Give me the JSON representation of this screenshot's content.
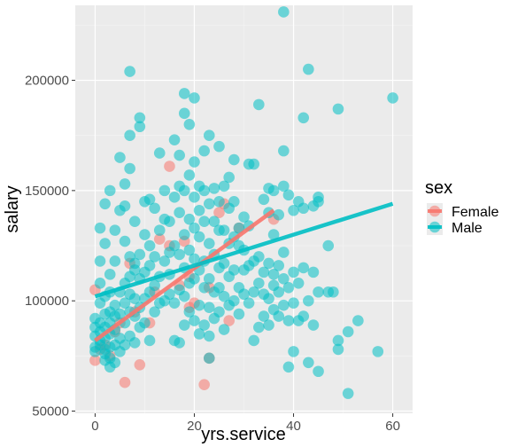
{
  "chart_data": {
    "type": "scatter",
    "title": "",
    "xlabel": "yrs.service",
    "ylabel": "salary",
    "xlim": [
      -4,
      64
    ],
    "ylim": [
      49000,
      234000
    ],
    "x_ticks": [
      0,
      20,
      40,
      60
    ],
    "x_tick_labels": [
      "0",
      "20",
      "40",
      "60"
    ],
    "y_ticks": [
      50000,
      100000,
      150000,
      200000
    ],
    "y_tick_labels": [
      "50000",
      "100000",
      "150000",
      "200000"
    ],
    "grid": true,
    "legend": {
      "title": "sex",
      "position": "right"
    },
    "series": [
      {
        "name": "Female",
        "color": "#F8766D",
        "trend": {
          "x": [
            0,
            36
          ],
          "y": [
            82000,
            141000
          ]
        },
        "points": [
          [
            0,
            105000
          ],
          [
            0,
            73000
          ],
          [
            1,
            78000
          ],
          [
            2,
            80000
          ],
          [
            3,
            75000
          ],
          [
            4,
            86000
          ],
          [
            5,
            90000
          ],
          [
            6,
            63000
          ],
          [
            7,
            117000
          ],
          [
            8,
            95000
          ],
          [
            9,
            71000
          ],
          [
            11,
            90000
          ],
          [
            12,
            104000
          ],
          [
            13,
            128000
          ],
          [
            15,
            161000
          ],
          [
            15,
            125000
          ],
          [
            17,
            107000
          ],
          [
            18,
            127000
          ],
          [
            19,
            97000
          ],
          [
            19,
            111000
          ],
          [
            20,
            99000
          ],
          [
            22,
            62000
          ],
          [
            23,
            74000
          ],
          [
            23,
            106000
          ],
          [
            25,
            140000
          ],
          [
            26,
            144000
          ],
          [
            27,
            91000
          ],
          [
            29,
            133000
          ],
          [
            36,
            137000
          ]
        ]
      },
      {
        "name": "Male",
        "color": "#00BFC4",
        "trend": {
          "x": [
            0,
            60
          ],
          "y": [
            102000,
            144000
          ]
        },
        "points": [
          [
            0,
            79000
          ],
          [
            0,
            84000
          ],
          [
            0,
            88000
          ],
          [
            0,
            92000
          ],
          [
            0,
            77000
          ],
          [
            1,
            80000
          ],
          [
            1,
            82000
          ],
          [
            1,
            86000
          ],
          [
            1,
            90000
          ],
          [
            1,
            99000
          ],
          [
            1,
            108000
          ],
          [
            1,
            118000
          ],
          [
            1,
            133000
          ],
          [
            2,
            76000
          ],
          [
            2,
            73000
          ],
          [
            2,
            78000
          ],
          [
            2,
            83000
          ],
          [
            2,
            88000
          ],
          [
            2,
            94000
          ],
          [
            2,
            102000
          ],
          [
            2,
            126000
          ],
          [
            2,
            144000
          ],
          [
            3,
            70000
          ],
          [
            3,
            74000
          ],
          [
            3,
            79000
          ],
          [
            3,
            85000
          ],
          [
            3,
            90000
          ],
          [
            3,
            95000
          ],
          [
            3,
            104000
          ],
          [
            3,
            112000
          ],
          [
            3,
            150000
          ],
          [
            4,
            72000
          ],
          [
            4,
            80000
          ],
          [
            4,
            87000
          ],
          [
            4,
            93000
          ],
          [
            4,
            98000
          ],
          [
            4,
            118000
          ],
          [
            4,
            132000
          ],
          [
            5,
            77000
          ],
          [
            5,
            83000
          ],
          [
            5,
            94000
          ],
          [
            5,
            104000
          ],
          [
            5,
            141000
          ],
          [
            5,
            165000
          ],
          [
            6,
            80000
          ],
          [
            6,
            90000
          ],
          [
            6,
            99000
          ],
          [
            6,
            108000
          ],
          [
            6,
            127000
          ],
          [
            6,
            143000
          ],
          [
            6,
            153000
          ],
          [
            7,
            84000
          ],
          [
            7,
            95000
          ],
          [
            7,
            103000
          ],
          [
            7,
            111000
          ],
          [
            7,
            120000
          ],
          [
            7,
            160000
          ],
          [
            7,
            175000
          ],
          [
            7,
            204000
          ],
          [
            8,
            81000
          ],
          [
            8,
            93000
          ],
          [
            8,
            101000
          ],
          [
            8,
            117000
          ],
          [
            8,
            136000
          ],
          [
            8,
            114000
          ],
          [
            9,
            88000
          ],
          [
            9,
            97000
          ],
          [
            9,
            110000
          ],
          [
            9,
            121000
          ],
          [
            9,
            179000
          ],
          [
            9,
            183000
          ],
          [
            10,
            90000
          ],
          [
            10,
            101000
          ],
          [
            10,
            113000
          ],
          [
            10,
            145000
          ],
          [
            10,
            130000
          ],
          [
            11,
            82000
          ],
          [
            11,
            104000
          ],
          [
            11,
            116000
          ],
          [
            11,
            125000
          ],
          [
            11,
            146000
          ],
          [
            12,
            95000
          ],
          [
            12,
            107000
          ],
          [
            12,
            120000
          ],
          [
            12,
            142000
          ],
          [
            13,
            99000
          ],
          [
            13,
            111000
          ],
          [
            13,
            132000
          ],
          [
            13,
            167000
          ],
          [
            14,
            100000
          ],
          [
            14,
            118000
          ],
          [
            14,
            137000
          ],
          [
            14,
            150000
          ],
          [
            15,
            103000
          ],
          [
            15,
            112000
          ],
          [
            15,
            122000
          ],
          [
            15,
            136000
          ],
          [
            16,
            82000
          ],
          [
            16,
            99000
          ],
          [
            16,
            125000
          ],
          [
            16,
            147000
          ],
          [
            16,
            173000
          ],
          [
            17,
            81000
          ],
          [
            17,
            105000
          ],
          [
            17,
            121000
          ],
          [
            17,
            140000
          ],
          [
            17,
            152000
          ],
          [
            17,
            166000
          ],
          [
            18,
            89000
          ],
          [
            18,
            102000
          ],
          [
            18,
            115000
          ],
          [
            18,
            130000
          ],
          [
            18,
            150000
          ],
          [
            18,
            185000
          ],
          [
            18,
            194000
          ],
          [
            19,
            95000
          ],
          [
            19,
            108000
          ],
          [
            19,
            123000
          ],
          [
            19,
            137000
          ],
          [
            19,
            157000
          ],
          [
            19,
            180000
          ],
          [
            20,
            91000
          ],
          [
            20,
            110000
          ],
          [
            20,
            119000
          ],
          [
            20,
            133000
          ],
          [
            20,
            147000
          ],
          [
            20,
            163000
          ],
          [
            20,
            192000
          ],
          [
            21,
            85000
          ],
          [
            21,
            98000
          ],
          [
            21,
            114000
          ],
          [
            21,
            129000
          ],
          [
            21,
            141000
          ],
          [
            21,
            152000
          ],
          [
            22,
            89000
          ],
          [
            22,
            106000
          ],
          [
            22,
            118000
          ],
          [
            22,
            136000
          ],
          [
            22,
            150000
          ],
          [
            22,
            168000
          ],
          [
            23,
            74000
          ],
          [
            23,
            84000
          ],
          [
            23,
            97000
          ],
          [
            23,
            110000
          ],
          [
            23,
            126000
          ],
          [
            23,
            144000
          ],
          [
            23,
            175000
          ],
          [
            24,
            92000
          ],
          [
            24,
            104000
          ],
          [
            24,
            121000
          ],
          [
            24,
            136000
          ],
          [
            24,
            151000
          ],
          [
            25,
            95000
          ],
          [
            25,
            106000
          ],
          [
            25,
            115000
          ],
          [
            25,
            132000
          ],
          [
            25,
            145000
          ],
          [
            25,
            170000
          ],
          [
            26,
            87000
          ],
          [
            26,
            102000
          ],
          [
            26,
            117000
          ],
          [
            26,
            132000
          ],
          [
            26,
            152000
          ],
          [
            27,
            98000
          ],
          [
            27,
            111000
          ],
          [
            27,
            126000
          ],
          [
            27,
            142000
          ],
          [
            27,
            156000
          ],
          [
            28,
            100000
          ],
          [
            28,
            114000
          ],
          [
            28,
            129000
          ],
          [
            28,
            145000
          ],
          [
            28,
            164000
          ],
          [
            29,
            94000
          ],
          [
            29,
            106000
          ],
          [
            29,
            125000
          ],
          [
            29,
            133000
          ],
          [
            30,
            103000
          ],
          [
            30,
            114000
          ],
          [
            30,
            123000
          ],
          [
            30,
            138000
          ],
          [
            31,
            99000
          ],
          [
            31,
            116000
          ],
          [
            31,
            134000
          ],
          [
            31,
            162000
          ],
          [
            32,
            82000
          ],
          [
            32,
            104000
          ],
          [
            32,
            118000
          ],
          [
            32,
            162000
          ],
          [
            33,
            88000
          ],
          [
            33,
            108000
          ],
          [
            33,
            120000
          ],
          [
            33,
            189000
          ],
          [
            34,
            93000
          ],
          [
            34,
            103000
          ],
          [
            34,
            113000
          ],
          [
            34,
            146000
          ],
          [
            35,
            89000
          ],
          [
            35,
            101000
          ],
          [
            35,
            117000
          ],
          [
            35,
            140000
          ],
          [
            35,
            151000
          ],
          [
            36,
            96000
          ],
          [
            36,
            107000
          ],
          [
            36,
            112000
          ],
          [
            36,
            130000
          ],
          [
            36,
            150000
          ],
          [
            37,
            93000
          ],
          [
            37,
            104000
          ],
          [
            37,
            116000
          ],
          [
            37,
            139000
          ],
          [
            38,
            98000
          ],
          [
            38,
            110000
          ],
          [
            38,
            122000
          ],
          [
            38,
            152000
          ],
          [
            38,
            168000
          ],
          [
            38,
            231000
          ],
          [
            39,
            70000
          ],
          [
            39,
            91000
          ],
          [
            39,
            106000
          ],
          [
            39,
            148000
          ],
          [
            40,
            77000
          ],
          [
            40,
            99000
          ],
          [
            40,
            113000
          ],
          [
            40,
            141000
          ],
          [
            41,
            91000
          ],
          [
            41,
            108000
          ],
          [
            41,
            145000
          ],
          [
            42,
            93000
          ],
          [
            42,
            115000
          ],
          [
            42,
            142000
          ],
          [
            42,
            183000
          ],
          [
            43,
            72000
          ],
          [
            43,
            100000
          ],
          [
            43,
            205000
          ],
          [
            44,
            89000
          ],
          [
            44,
            113000
          ],
          [
            44,
            143000
          ],
          [
            45,
            68000
          ],
          [
            45,
            104000
          ],
          [
            45,
            145000
          ],
          [
            45,
            147000
          ],
          [
            47,
            104000
          ],
          [
            47,
            125000
          ],
          [
            48,
            104000
          ],
          [
            49,
            82000
          ],
          [
            49,
            78000
          ],
          [
            49,
            187000
          ],
          [
            51,
            58000
          ],
          [
            51,
            86000
          ],
          [
            53,
            91000
          ],
          [
            57,
            77000
          ],
          [
            60,
            192000
          ]
        ]
      }
    ]
  }
}
